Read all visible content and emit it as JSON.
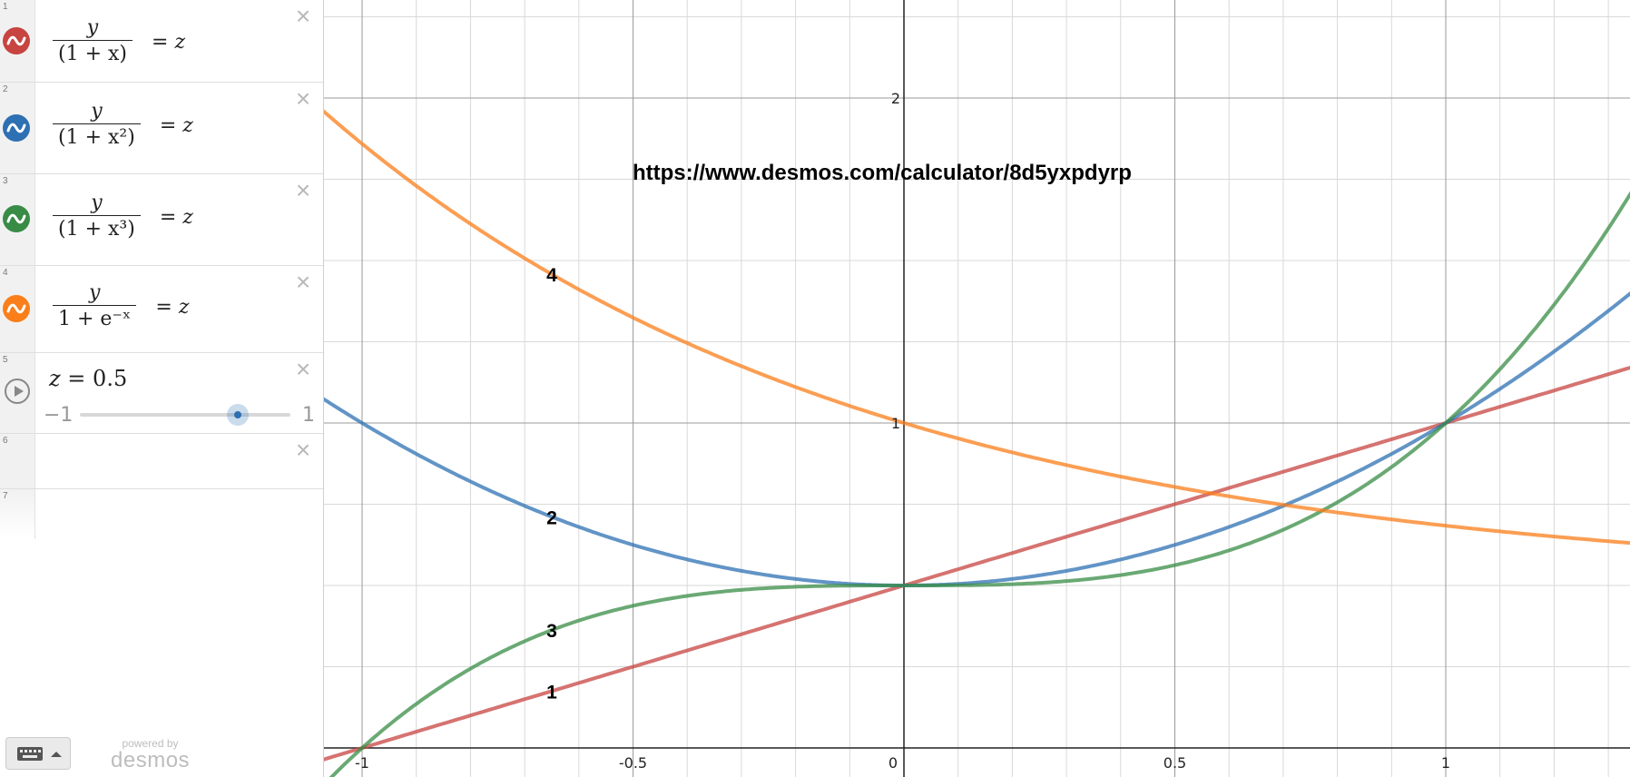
{
  "expressions": [
    {
      "index": "1",
      "numerator": "y",
      "denominator": "(1 + x)",
      "rhs": "z",
      "color": "#c74440",
      "icon": "wave-icon"
    },
    {
      "index": "2",
      "numerator": "y",
      "denominator": "(1 + x²)",
      "rhs": "z",
      "color": "#2d70b3",
      "icon": "wave-icon"
    },
    {
      "index": "3",
      "numerator": "y",
      "denominator": "(1 + x³)",
      "rhs": "z",
      "color": "#388c46",
      "icon": "wave-icon"
    },
    {
      "index": "4",
      "numerator": "y",
      "denominator": "1 + e⁻ˣ",
      "rhs": "z",
      "color": "#fa7e19",
      "icon": "wave-icon"
    }
  ],
  "slider": {
    "index": "5",
    "lhs": "z",
    "equals": "=",
    "value_text": "0.5",
    "value": 0.5,
    "min_label": "−1",
    "max_label": "1",
    "min": -1,
    "max": 1,
    "icon": "play-icon"
  },
  "empty_rows": [
    {
      "index": "6"
    },
    {
      "index": "7"
    }
  ],
  "footer": {
    "powered_small": "powered by",
    "logo_text": "desmos",
    "keyboard_icon": "keyboard-icon",
    "caret_icon": "caret-up-icon"
  },
  "graph": {
    "annotation": "https://www.desmos.com/calculator/8d5yxpdyrp",
    "x_ticks": [
      "-1",
      "-0.5",
      "0",
      "0.5",
      "1"
    ],
    "y_ticks": [
      "1",
      "2"
    ],
    "origin_label": "0",
    "curve_labels": [
      "1",
      "2",
      "3",
      "4"
    ]
  },
  "chart_data": {
    "type": "line",
    "xlim": [
      -1.1,
      1.35
    ],
    "ylim": [
      -0.05,
      2.35
    ],
    "grid": true,
    "series": [
      {
        "name": "1",
        "color": "#c74440",
        "formula": "z*(1+x)"
      },
      {
        "name": "2",
        "color": "#2d70b3",
        "formula": "z*(1+x^2)"
      },
      {
        "name": "3",
        "color": "#388c46",
        "formula": "z*(1+x^3)"
      },
      {
        "name": "4",
        "color": "#fa7e19",
        "formula": "z*(1+e^-x)"
      }
    ],
    "parameter": {
      "name": "z",
      "value": 0.5
    }
  }
}
